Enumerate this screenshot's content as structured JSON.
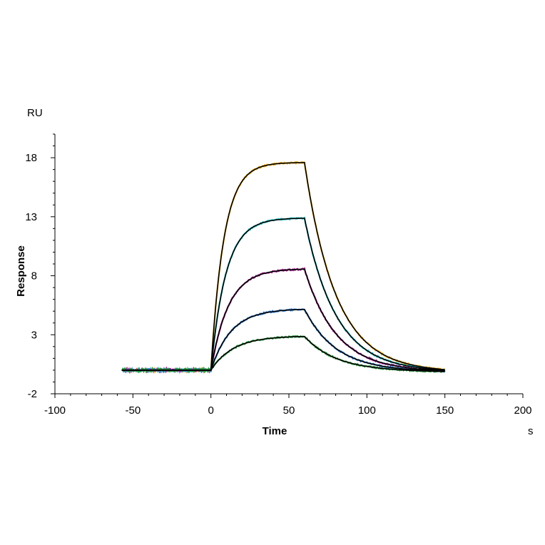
{
  "chart_data": {
    "type": "line",
    "xlabel": "Time",
    "ylabel": "Response",
    "x_unit": "s",
    "y_unit": "RU",
    "xlim": [
      -100,
      200
    ],
    "ylim": [
      -2,
      20
    ],
    "x_ticks": [
      -100,
      -50,
      0,
      50,
      100,
      150,
      200
    ],
    "y_ticks": [
      -2,
      3,
      8,
      13,
      18
    ],
    "grid": false,
    "legend": "none",
    "curves": [
      {
        "color": "#f2b01e",
        "plateau": 17.6
      },
      {
        "color": "#27c3c9",
        "plateau": 12.9
      },
      {
        "color": "#a11a8c",
        "plateau": 8.6
      },
      {
        "color": "#2f7bd1",
        "plateau": 5.2
      },
      {
        "color": "#2a9a3c",
        "plateau": 2.9
      }
    ],
    "fit_color": "#000000",
    "baseline": 0,
    "association_start": 0,
    "dissociation_start": 60,
    "end_time": 150,
    "start_time": -57
  }
}
